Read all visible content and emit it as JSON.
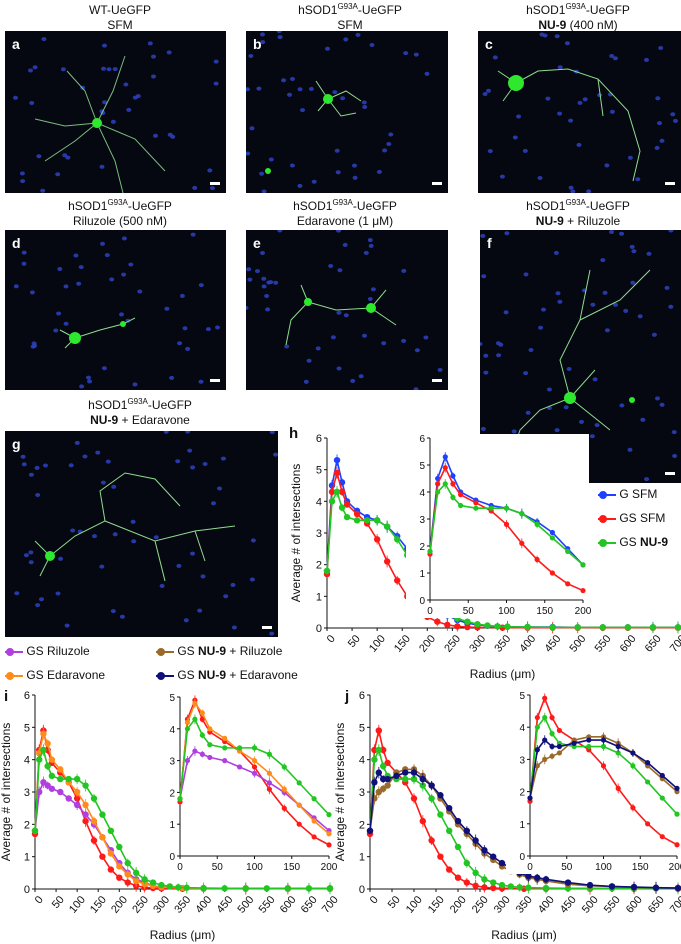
{
  "captions": {
    "a": {
      "line1": "WT-UeGFP",
      "line2": "SFM"
    },
    "b": {
      "line1a": "hSOD1",
      "sup": "G93A",
      "line1b": "-UeGFP",
      "line2": "SFM"
    },
    "c": {
      "line1a": "hSOD1",
      "sup": "G93A",
      "line1b": "-UeGFP",
      "line2bold": "NU-9",
      "line2rest": " (400 nM)"
    },
    "d": {
      "line1a": "hSOD1",
      "sup": "G93A",
      "line1b": "-UeGFP",
      "line2": "Riluzole (500 nM)"
    },
    "e": {
      "line1a": "hSOD1",
      "sup": "G93A",
      "line1b": "-UeGFP",
      "line2": "Edaravone (1 μM)"
    },
    "f": {
      "line1a": "hSOD1",
      "sup": "G93A",
      "line1b": "-UeGFP",
      "line2bold": "NU-9",
      "line2rest": " + Riluzole"
    },
    "g": {
      "line1a": "hSOD1",
      "sup": "G93A",
      "line1b": "-UeGFP",
      "line2bold": "NU-9",
      "line2rest": " + Edaravone"
    }
  },
  "panel_letters": [
    "a",
    "b",
    "c",
    "d",
    "e",
    "f",
    "g",
    "h",
    "i",
    "j"
  ],
  "legend_i": [
    {
      "label": "GS Riluzole",
      "color": "#b03ee0"
    },
    {
      "label": "GS Edaravone",
      "color": "#ff8c1a"
    }
  ],
  "legend_j": [
    {
      "pre": "GS ",
      "bold": "NU-9",
      "post": " + Riluzole",
      "color": "#9a6a2a"
    },
    {
      "pre": "GS ",
      "bold": "NU-9",
      "post": " + Edaravone",
      "color": "#10107a"
    }
  ],
  "legend_h": [
    {
      "pre": "G SFM",
      "bold": "",
      "color": "#1e40ff"
    },
    {
      "pre": "GS SFM",
      "bold": "",
      "color": "#ff1a1a"
    },
    {
      "pre": "GS ",
      "bold": "NU-9",
      "color": "#22c522"
    }
  ],
  "colors": {
    "g_sfm": "#1e40ff",
    "gs_sfm": "#ff1a1a",
    "gs_nu9": "#22c522",
    "gs_ril": "#b03ee0",
    "gs_eda": "#ff8c1a",
    "gs_nu9_ril": "#9a6a2a",
    "gs_nu9_eda": "#10107a"
  },
  "chart_data": [
    {
      "panel": "h",
      "type": "line",
      "xlabel": "Radius (μm)",
      "ylabel": "Average # of intersections",
      "xlim": [
        0,
        700
      ],
      "ylim": [
        0,
        6
      ],
      "xticks": [
        0,
        50,
        100,
        150,
        200,
        250,
        300,
        350,
        400,
        450,
        500,
        550,
        600,
        650,
        700
      ],
      "yticks": [
        0,
        1,
        2,
        3,
        4,
        5,
        6
      ],
      "series": [
        {
          "name": "G SFM",
          "color": "#1e40ff",
          "x": [
            0,
            10,
            20,
            30,
            40,
            60,
            80,
            100,
            120,
            140,
            160,
            180,
            200,
            220,
            240,
            260,
            280,
            300,
            320,
            340,
            360,
            400,
            450,
            500,
            550,
            600,
            650,
            700
          ],
          "y": [
            1.8,
            4.5,
            5.3,
            4.6,
            4.0,
            3.7,
            3.5,
            3.4,
            3.2,
            2.9,
            2.5,
            1.9,
            1.3,
            0.8,
            0.4,
            0.25,
            0.15,
            0.1,
            0.07,
            0.05,
            0.04,
            0.03,
            0.03,
            0.02,
            0.02,
            0.02,
            0.02,
            0.02
          ]
        },
        {
          "name": "GS SFM",
          "color": "#ff1a1a",
          "x": [
            0,
            10,
            20,
            30,
            40,
            60,
            80,
            100,
            120,
            140,
            160,
            180,
            200,
            220,
            240,
            260,
            280,
            300,
            350,
            400,
            450,
            500,
            550,
            600,
            650,
            700
          ],
          "y": [
            1.7,
            4.3,
            4.9,
            4.3,
            3.9,
            3.6,
            3.3,
            2.8,
            2.1,
            1.5,
            1.0,
            0.6,
            0.35,
            0.2,
            0.1,
            0.05,
            0.03,
            0.02,
            0.01,
            0.01,
            0.01,
            0.01,
            0.01,
            0.01,
            0.01,
            0.01
          ]
        },
        {
          "name": "GS NU-9",
          "color": "#22c522",
          "x": [
            0,
            10,
            20,
            30,
            40,
            60,
            80,
            100,
            120,
            140,
            160,
            180,
            200,
            220,
            240,
            260,
            280,
            300,
            320,
            340,
            360,
            400,
            450,
            500,
            550,
            600,
            650,
            700
          ],
          "y": [
            1.8,
            4.0,
            4.3,
            3.8,
            3.5,
            3.4,
            3.4,
            3.4,
            3.2,
            2.8,
            2.3,
            1.8,
            1.3,
            0.8,
            0.5,
            0.3,
            0.2,
            0.12,
            0.08,
            0.05,
            0.04,
            0.03,
            0.02,
            0.02,
            0.02,
            0.02,
            0.02,
            0.02
          ]
        }
      ],
      "inset": {
        "xlim": [
          0,
          200
        ],
        "ylim": [
          0,
          6
        ],
        "xticks": [
          0,
          50,
          100,
          150,
          200
        ],
        "yticks": [
          0,
          1,
          2,
          3,
          4,
          5,
          6
        ]
      }
    },
    {
      "panel": "i",
      "type": "line",
      "xlabel": "Radius (μm)",
      "ylabel": "Average # of intersections",
      "xlim": [
        0,
        700
      ],
      "ylim": [
        0,
        6
      ],
      "xticks": [
        0,
        50,
        100,
        150,
        200,
        250,
        300,
        350,
        400,
        450,
        500,
        550,
        600,
        650,
        700
      ],
      "yticks": [
        0,
        1,
        2,
        3,
        4,
        5,
        6
      ],
      "series": [
        {
          "name": "GS SFM",
          "color": "#ff1a1a",
          "x": [
            0,
            10,
            20,
            30,
            40,
            60,
            80,
            100,
            120,
            140,
            160,
            180,
            200,
            220,
            240,
            260,
            280,
            300,
            350,
            400,
            500,
            600,
            700
          ],
          "y": [
            1.7,
            4.3,
            4.9,
            4.3,
            3.9,
            3.6,
            3.3,
            2.8,
            2.1,
            1.5,
            1.0,
            0.6,
            0.35,
            0.2,
            0.1,
            0.05,
            0.03,
            0.02,
            0.01,
            0.01,
            0.01,
            0.01,
            0.01
          ]
        },
        {
          "name": "GS Riluzole",
          "color": "#b03ee0",
          "x": [
            0,
            10,
            20,
            30,
            40,
            60,
            80,
            100,
            120,
            140,
            160,
            180,
            200,
            220,
            240,
            260,
            280,
            300,
            350,
            400,
            500,
            600,
            700
          ],
          "y": [
            1.8,
            3.0,
            3.3,
            3.2,
            3.1,
            3.0,
            2.8,
            2.6,
            2.3,
            2.0,
            1.6,
            1.2,
            0.8,
            0.5,
            0.3,
            0.2,
            0.1,
            0.06,
            0.03,
            0.02,
            0.02,
            0.02,
            0.02
          ]
        },
        {
          "name": "GS Edaravone",
          "color": "#ff8c1a",
          "x": [
            0,
            10,
            20,
            30,
            40,
            60,
            80,
            100,
            120,
            140,
            160,
            180,
            200,
            220,
            240,
            260,
            280,
            300,
            350,
            400,
            500,
            600,
            700
          ],
          "y": [
            1.8,
            4.2,
            4.8,
            4.5,
            4.0,
            3.7,
            3.3,
            3.0,
            2.6,
            2.1,
            1.6,
            1.1,
            0.7,
            0.45,
            0.25,
            0.15,
            0.1,
            0.06,
            0.03,
            0.02,
            0.02,
            0.02,
            0.02
          ]
        },
        {
          "name": "GS NU-9",
          "color": "#22c522",
          "x": [
            0,
            10,
            20,
            30,
            40,
            60,
            80,
            100,
            120,
            140,
            160,
            180,
            200,
            220,
            240,
            260,
            280,
            300,
            320,
            340,
            360,
            400,
            450,
            500,
            550,
            600,
            650,
            700
          ],
          "y": [
            1.8,
            4.0,
            4.3,
            3.8,
            3.5,
            3.4,
            3.4,
            3.4,
            3.2,
            2.8,
            2.3,
            1.8,
            1.3,
            0.8,
            0.5,
            0.3,
            0.2,
            0.12,
            0.08,
            0.05,
            0.04,
            0.03,
            0.02,
            0.02,
            0.02,
            0.02,
            0.02,
            0.02
          ]
        }
      ],
      "inset": {
        "xlim": [
          0,
          200
        ],
        "ylim": [
          0,
          5
        ],
        "xticks": [
          0,
          50,
          100,
          150,
          200
        ],
        "yticks": [
          0,
          1,
          2,
          3,
          4,
          5
        ]
      }
    },
    {
      "panel": "j",
      "type": "line",
      "xlabel": "Radius (μm)",
      "ylabel": "Average # of intersections",
      "xlim": [
        0,
        700
      ],
      "ylim": [
        0,
        6
      ],
      "xticks": [
        0,
        50,
        100,
        150,
        200,
        250,
        300,
        350,
        400,
        450,
        500,
        550,
        600,
        650,
        700
      ],
      "yticks": [
        0,
        1,
        2,
        3,
        4,
        5,
        6
      ],
      "series": [
        {
          "name": "GS SFM",
          "color": "#ff1a1a",
          "x": [
            0,
            10,
            20,
            30,
            40,
            60,
            80,
            100,
            120,
            140,
            160,
            180,
            200,
            220,
            240,
            260,
            280,
            300,
            350,
            400,
            500,
            600,
            700
          ],
          "y": [
            1.7,
            4.3,
            4.9,
            4.3,
            3.9,
            3.6,
            3.3,
            2.8,
            2.1,
            1.5,
            1.0,
            0.6,
            0.35,
            0.2,
            0.1,
            0.05,
            0.03,
            0.02,
            0.01,
            0.01,
            0.01,
            0.01,
            0.01
          ]
        },
        {
          "name": "GS NU-9",
          "color": "#22c522",
          "x": [
            0,
            10,
            20,
            30,
            40,
            60,
            80,
            100,
            120,
            140,
            160,
            180,
            200,
            220,
            240,
            260,
            280,
            300,
            320,
            340,
            360,
            400,
            450,
            500,
            550,
            600,
            650,
            700
          ],
          "y": [
            1.8,
            4.0,
            4.3,
            3.8,
            3.5,
            3.4,
            3.4,
            3.4,
            3.2,
            2.8,
            2.3,
            1.8,
            1.3,
            0.8,
            0.5,
            0.3,
            0.2,
            0.12,
            0.08,
            0.05,
            0.04,
            0.03,
            0.02,
            0.02,
            0.02,
            0.02,
            0.02,
            0.02
          ]
        },
        {
          "name": "GS NU-9 + Riluzole",
          "color": "#9a6a2a",
          "x": [
            0,
            10,
            20,
            30,
            40,
            60,
            80,
            100,
            120,
            140,
            160,
            180,
            200,
            220,
            240,
            260,
            280,
            300,
            320,
            340,
            360,
            380,
            400,
            450,
            500,
            550,
            600,
            650,
            700
          ],
          "y": [
            1.8,
            2.8,
            3.0,
            3.1,
            3.2,
            3.6,
            3.7,
            3.7,
            3.5,
            3.2,
            2.8,
            2.4,
            2.0,
            1.7,
            1.4,
            1.1,
            0.9,
            0.7,
            0.55,
            0.45,
            0.35,
            0.3,
            0.25,
            0.15,
            0.1,
            0.08,
            0.05,
            0.04,
            0.03
          ]
        },
        {
          "name": "GS NU-9 + Edaravone",
          "color": "#10107a",
          "x": [
            0,
            10,
            20,
            30,
            40,
            60,
            80,
            100,
            120,
            140,
            160,
            180,
            200,
            220,
            240,
            260,
            280,
            300,
            320,
            340,
            360,
            380,
            400,
            450,
            500,
            550,
            600,
            650,
            700
          ],
          "y": [
            1.8,
            3.3,
            3.6,
            3.4,
            3.4,
            3.5,
            3.6,
            3.6,
            3.4,
            3.2,
            2.9,
            2.5,
            2.1,
            1.8,
            1.5,
            1.2,
            1.0,
            0.8,
            0.65,
            0.5,
            0.4,
            0.35,
            0.3,
            0.2,
            0.12,
            0.08,
            0.06,
            0.04,
            0.03
          ]
        }
      ],
      "inset": {
        "xlim": [
          0,
          200
        ],
        "ylim": [
          0,
          5
        ],
        "xticks": [
          0,
          50,
          100,
          150,
          200
        ],
        "yticks": [
          0,
          1,
          2,
          3,
          4,
          5
        ]
      }
    }
  ]
}
